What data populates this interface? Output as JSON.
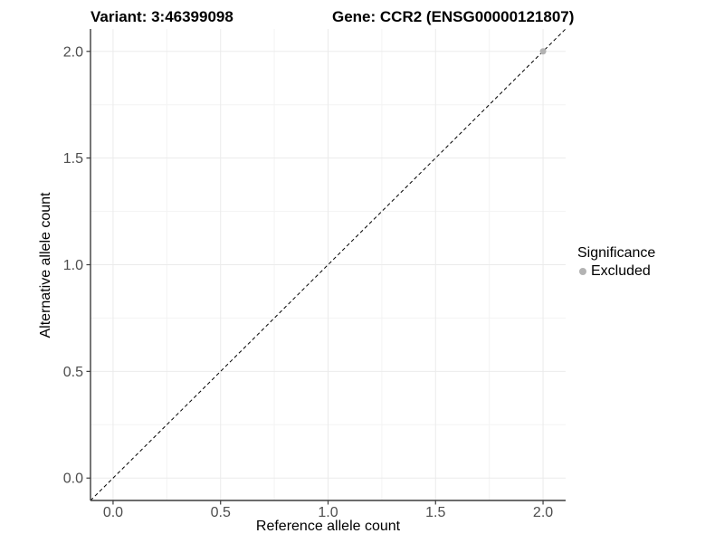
{
  "figure": {
    "title_variant": "Variant: 3:46399098",
    "title_gene": "Gene: CCR2 (ENSG00000121807)"
  },
  "chart_data": {
    "type": "scatter",
    "title": "Variant: 3:46399098    Gene: CCR2 (ENSG00000121807)",
    "xlabel": "Reference allele count",
    "ylabel": "Alternative allele count",
    "xlim": [
      -0.105,
      2.105
    ],
    "ylim": [
      -0.105,
      2.105
    ],
    "x_ticks": [
      0.0,
      0.5,
      1.0,
      1.5,
      2.0
    ],
    "y_ticks": [
      0.0,
      0.5,
      1.0,
      1.5,
      2.0
    ],
    "x_minor_ticks": [
      0.25,
      0.75,
      1.25,
      1.75
    ],
    "y_minor_ticks": [
      0.25,
      0.75,
      1.25,
      1.75
    ],
    "grid": "on",
    "points": [
      {
        "x": 2.0,
        "y": 2.0,
        "series": "Excluded"
      }
    ],
    "reference_line": {
      "type": "abline",
      "slope": 1,
      "intercept": 0,
      "linetype": "dashed",
      "color": "#000000"
    },
    "legend": {
      "title": "Significance",
      "position": "right",
      "entries": [
        {
          "label": "Excluded",
          "color": "#b3b3b3",
          "marker": "circle"
        }
      ]
    },
    "colors": {
      "background": "#ffffff",
      "grid_major": "#ebebeb",
      "grid_minor": "#f3f3f3",
      "axis_line": "#3c3c3c",
      "tick_text": "#4d4d4d",
      "point_excluded": "#b3b3b3",
      "dashed_line": "#000000"
    }
  }
}
